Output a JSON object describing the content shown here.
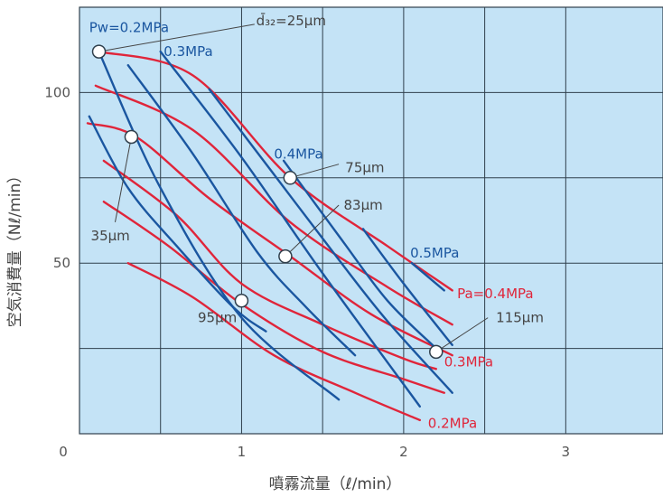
{
  "colors": {
    "plot_background": "#c4e3f6",
    "grid": "#2f3f4c",
    "blue_series": "#1a56a0",
    "red_series": "#e0253a",
    "annotation_text": "#444444",
    "marker_fill": "#ffffff"
  },
  "chart_data": {
    "type": "line",
    "xlabel": "噴霧流量（ℓ/min）",
    "ylabel": "空気消費量（Nℓ/min）",
    "xlim": [
      0,
      3.6
    ],
    "ylim": [
      0,
      125
    ],
    "origin_label": "0",
    "x_ticks": [
      {
        "value": 1,
        "label": "1"
      },
      {
        "value": 2,
        "label": "2"
      },
      {
        "value": 3,
        "label": "3"
      }
    ],
    "y_ticks": [
      {
        "value": 50,
        "label": "50"
      },
      {
        "value": 100,
        "label": "100"
      }
    ],
    "grid_x": [
      0.5,
      1,
      1.5,
      2,
      2.5,
      3
    ],
    "grid_y": [
      25,
      50,
      75,
      100
    ],
    "grid": true,
    "series": [
      {
        "group": "liquid_pressure",
        "name": "Pw=0.2MPa",
        "points": [
          [
            0.12,
            112
          ],
          [
            0.5,
            72
          ],
          [
            1.0,
            34
          ],
          [
            1.6,
            10
          ]
        ]
      },
      {
        "group": "liquid_pressure",
        "name": "",
        "points": [
          [
            0.06,
            93
          ],
          [
            0.3,
            72
          ],
          [
            0.6,
            55
          ],
          [
            0.95,
            37
          ],
          [
            1.15,
            30
          ]
        ]
      },
      {
        "group": "liquid_pressure",
        "name": "",
        "points": [
          [
            0.3,
            108
          ],
          [
            0.7,
            82
          ],
          [
            1.1,
            53
          ],
          [
            1.4,
            37
          ],
          [
            1.7,
            23
          ]
        ]
      },
      {
        "group": "liquid_pressure",
        "name": "0.3MPa",
        "points": [
          [
            0.5,
            112
          ],
          [
            1.0,
            81
          ],
          [
            1.5,
            47
          ],
          [
            2.1,
            8
          ]
        ]
      },
      {
        "group": "liquid_pressure",
        "name": "",
        "points": [
          [
            0.8,
            101
          ],
          [
            1.2,
            76
          ],
          [
            1.6,
            51
          ],
          [
            1.9,
            33
          ],
          [
            2.3,
            12
          ]
        ]
      },
      {
        "group": "liquid_pressure",
        "name": "0.4MPa",
        "points": [
          [
            1.26,
            80
          ],
          [
            1.6,
            58
          ],
          [
            1.9,
            39
          ],
          [
            2.2,
            25
          ]
        ]
      },
      {
        "group": "liquid_pressure",
        "name": "",
        "points": [
          [
            1.75,
            60
          ],
          [
            2.0,
            44
          ],
          [
            2.3,
            26
          ]
        ]
      },
      {
        "group": "liquid_pressure",
        "name": "0.5MPa",
        "points": [
          [
            2.05,
            50
          ],
          [
            2.25,
            42
          ]
        ]
      },
      {
        "group": "air_pressure",
        "name": "",
        "points": [
          [
            0.12,
            112
          ],
          [
            0.7,
            105
          ],
          [
            1.3,
            75
          ],
          [
            1.9,
            55
          ],
          [
            2.3,
            42
          ]
        ]
      },
      {
        "group": "air_pressure",
        "name": "Pa=0.4MPa",
        "points": [
          [
            0.1,
            102
          ],
          [
            0.7,
            89
          ],
          [
            1.3,
            62
          ],
          [
            1.9,
            43
          ],
          [
            2.3,
            32
          ]
        ]
      },
      {
        "group": "air_pressure",
        "name": "",
        "points": [
          [
            0.05,
            91
          ],
          [
            0.35,
            87
          ],
          [
            0.8,
            69
          ],
          [
            1.3,
            52
          ],
          [
            1.8,
            35
          ],
          [
            2.3,
            23
          ]
        ]
      },
      {
        "group": "air_pressure",
        "name": "0.3MPa",
        "points": [
          [
            0.15,
            80
          ],
          [
            0.6,
            64
          ],
          [
            1.0,
            44
          ],
          [
            1.5,
            32
          ],
          [
            2.0,
            22
          ],
          [
            2.2,
            19
          ]
        ]
      },
      {
        "group": "air_pressure",
        "name": "",
        "points": [
          [
            0.15,
            68
          ],
          [
            0.55,
            55
          ],
          [
            1.0,
            38
          ],
          [
            1.5,
            24
          ],
          [
            2.0,
            16
          ],
          [
            2.25,
            12
          ]
        ]
      },
      {
        "group": "air_pressure",
        "name": "0.2MPa",
        "points": [
          [
            0.3,
            50
          ],
          [
            0.7,
            40
          ],
          [
            1.2,
            23
          ],
          [
            1.7,
            12
          ],
          [
            2.1,
            4
          ]
        ]
      }
    ],
    "markers": [
      {
        "x": 0.12,
        "y": 112
      },
      {
        "x": 0.32,
        "y": 87
      },
      {
        "x": 1.0,
        "y": 39
      },
      {
        "x": 1.3,
        "y": 75
      },
      {
        "x": 1.27,
        "y": 52
      },
      {
        "x": 2.2,
        "y": 24
      }
    ],
    "droplet_size_labels": [
      {
        "text": "d̄₃₂=25μm",
        "x": 1.09,
        "y": 121,
        "lead_from": [
          0.12,
          112
        ],
        "lead_to": [
          1.08,
          120
        ]
      },
      {
        "text": "35μm",
        "x": 0.07,
        "y": 58,
        "lead_from": [
          0.32,
          87
        ],
        "lead_to": [
          0.22,
          62
        ]
      },
      {
        "text": "75μm",
        "x": 1.64,
        "y": 78,
        "lead_from": [
          1.3,
          75
        ],
        "lead_to": [
          1.6,
          79
        ]
      },
      {
        "text": "83μm",
        "x": 1.63,
        "y": 67,
        "lead_from": [
          1.27,
          52
        ],
        "lead_to": [
          1.6,
          67
        ]
      },
      {
        "text": "95μm",
        "x": 0.73,
        "y": 34,
        "lead_from": [],
        "lead_to": []
      },
      {
        "text": "115μm",
        "x": 2.57,
        "y": 34,
        "lead_from": [
          2.2,
          24
        ],
        "lead_to": [
          2.52,
          34
        ]
      }
    ],
    "series_labels": [
      {
        "text": "Pw=0.2MPa",
        "x": 0.06,
        "y": 119,
        "group": "liquid_pressure"
      },
      {
        "text": "0.3MPa",
        "x": 0.52,
        "y": 112,
        "group": "liquid_pressure"
      },
      {
        "text": "0.4MPa",
        "x": 1.2,
        "y": 82,
        "group": "liquid_pressure"
      },
      {
        "text": "0.5MPa",
        "x": 2.04,
        "y": 53,
        "group": "liquid_pressure"
      },
      {
        "text": "Pa=0.4MPa",
        "x": 2.33,
        "y": 41,
        "group": "air_pressure"
      },
      {
        "text": "0.3MPa",
        "x": 2.25,
        "y": 21,
        "group": "air_pressure"
      },
      {
        "text": "0.2MPa",
        "x": 2.15,
        "y": 3,
        "group": "air_pressure"
      }
    ]
  }
}
